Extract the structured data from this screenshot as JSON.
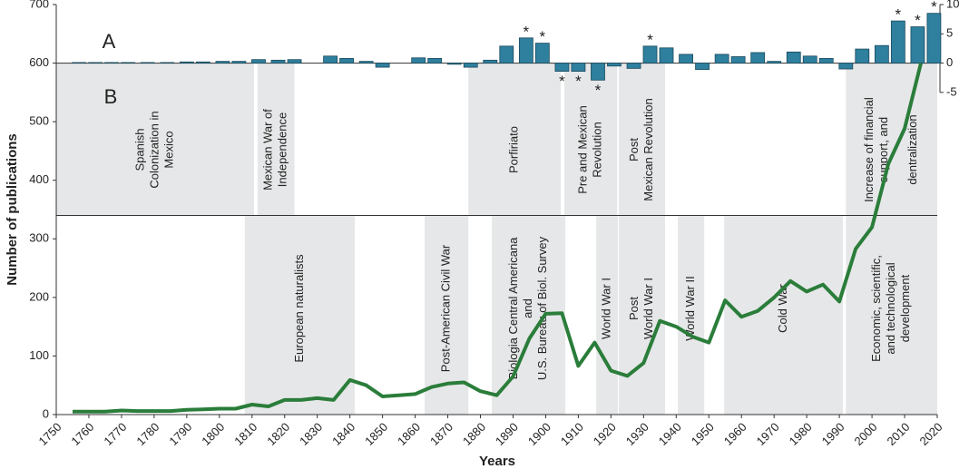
{
  "chart_data": {
    "type": "combo",
    "y_label": "Number of publications",
    "x_label": "Years",
    "panel_labels": [
      "A",
      "B"
    ],
    "xlim": [
      1750,
      2020
    ],
    "xticks": [
      1750,
      1760,
      1770,
      1780,
      1790,
      1800,
      1810,
      1820,
      1830,
      1840,
      1850,
      1860,
      1870,
      1880,
      1890,
      1900,
      1910,
      1920,
      1930,
      1940,
      1950,
      1960,
      1970,
      1980,
      1990,
      2000,
      2010,
      2020
    ],
    "ylim": [
      0,
      700
    ],
    "yticks": [
      0,
      100,
      200,
      300,
      400,
      500,
      600,
      700
    ],
    "y2lim": [
      -60,
      10
    ],
    "y2ticks": [
      -5,
      0,
      5,
      10
    ],
    "upper_band": [
      340,
      600
    ],
    "lower_band": [
      0,
      340
    ],
    "upper_periods": [
      {
        "lines": [
          "Spanish",
          "Colonization in",
          "Mexico"
        ],
        "start": 1750,
        "end": 1810.6
      },
      {
        "lines": [
          "Mexican  War of",
          "Independence"
        ],
        "start": 1811.7,
        "end": 1823
      },
      {
        "lines": [
          "Porfiriato"
        ],
        "start": 1876.3,
        "end": 1904.6
      },
      {
        "lines": [
          "Pre and Mexican",
          "Revolution"
        ],
        "start": 1905.7,
        "end": 1921.9
      },
      {
        "lines": [
          "Post",
          "Mexican Revolution"
        ],
        "start": 1922.4,
        "end": 1936.6
      },
      {
        "lines": [
          "Increase of financial",
          "support, and",
          "",
          "dentralization"
        ],
        "start": 1992,
        "end": 2020
      }
    ],
    "lower_periods": [
      {
        "lines": [
          "European naturalists"
        ],
        "start": 1807.8,
        "end": 1841.5
      },
      {
        "lines": [
          "Post-American Civil War"
        ],
        "start": 1862.9,
        "end": 1876.3
      },
      {
        "lines": [
          "Biologia Central Americana",
          "and",
          "U.S. Bureau of Biol. Survey"
        ],
        "start": 1883.5,
        "end": 1906
      },
      {
        "lines": [
          "World War I"
        ],
        "start": 1915.5,
        "end": 1922.1
      },
      {
        "lines": [
          "Post",
          "World War I"
        ],
        "start": 1922.4,
        "end": 1936.6
      },
      {
        "lines": [
          "World War II"
        ],
        "start": 1940.5,
        "end": 1948.6
      },
      {
        "lines": [
          "Cold War"
        ],
        "start": 1954.7,
        "end": 1991.1
      },
      {
        "lines": [
          "Economic, scientific,",
          "and technological",
          "development"
        ],
        "start": 1992,
        "end": 2020
      }
    ],
    "bars": {
      "color": "#2f7f9e",
      "x": [
        1757,
        1762,
        1767,
        1772,
        1778,
        1784,
        1790,
        1795,
        1801,
        1806,
        1812,
        1818,
        1823,
        1834,
        1839,
        1845,
        1850,
        1861,
        1866,
        1872,
        1877,
        1883,
        1888,
        1894,
        1899,
        1905,
        1910,
        1916,
        1921,
        1927,
        1932,
        1937,
        1943,
        1948,
        1954,
        1959,
        1965,
        1970,
        1976,
        1981,
        1986,
        1992,
        1997,
        2003,
        2008,
        2014,
        2019
      ],
      "values": [
        0.1,
        0.1,
        0.1,
        0.1,
        0.1,
        0.1,
        0.2,
        0.2,
        0.3,
        0.3,
        0.6,
        0.5,
        0.6,
        1.2,
        0.8,
        0.3,
        -0.7,
        0.9,
        0.8,
        -0.2,
        -0.7,
        0.5,
        2.9,
        4.3,
        3.4,
        -1.4,
        -1.4,
        -2.9,
        -0.5,
        -0.9,
        2.9,
        2.6,
        1.5,
        -1.1,
        1.5,
        1.1,
        1.8,
        0.3,
        1.9,
        1.2,
        0.8,
        -1.0,
        2.4,
        3.0,
        7.2,
        6.2,
        8.5
      ],
      "significance": [
        null,
        null,
        null,
        null,
        null,
        null,
        null,
        null,
        null,
        null,
        null,
        null,
        null,
        null,
        null,
        null,
        null,
        null,
        null,
        null,
        null,
        null,
        null,
        "*",
        "*",
        "*",
        "*",
        "*",
        null,
        null,
        "*",
        null,
        null,
        null,
        null,
        null,
        null,
        null,
        null,
        null,
        null,
        null,
        null,
        null,
        "*",
        "*",
        "*"
      ]
    },
    "line": {
      "color": "#2a7d3a",
      "x": [
        1755,
        1760,
        1765,
        1770,
        1775,
        1780,
        1785,
        1790,
        1795,
        1800,
        1805,
        1810,
        1815,
        1820,
        1825,
        1830,
        1835,
        1840,
        1845,
        1850,
        1855,
        1860,
        1865,
        1870,
        1875,
        1880,
        1885,
        1890,
        1895,
        1900,
        1905,
        1910,
        1915,
        1920,
        1925,
        1930,
        1935,
        1940,
        1945,
        1950,
        1955,
        1960,
        1965,
        1970,
        1975,
        1980,
        1985,
        1990,
        1995,
        2000,
        2005,
        2010,
        2015
      ],
      "values": [
        5,
        5,
        5,
        7,
        6,
        6,
        6,
        8,
        9,
        10,
        10,
        17,
        14,
        25,
        25,
        28,
        25,
        59,
        50,
        31,
        33,
        35,
        47,
        53,
        55,
        40,
        33,
        65,
        130,
        172,
        173,
        83,
        123,
        75,
        66,
        88,
        160,
        150,
        133,
        123,
        195,
        167,
        177,
        200,
        228,
        210,
        222,
        193,
        283,
        320,
        428,
        488,
        600
      ]
    }
  }
}
